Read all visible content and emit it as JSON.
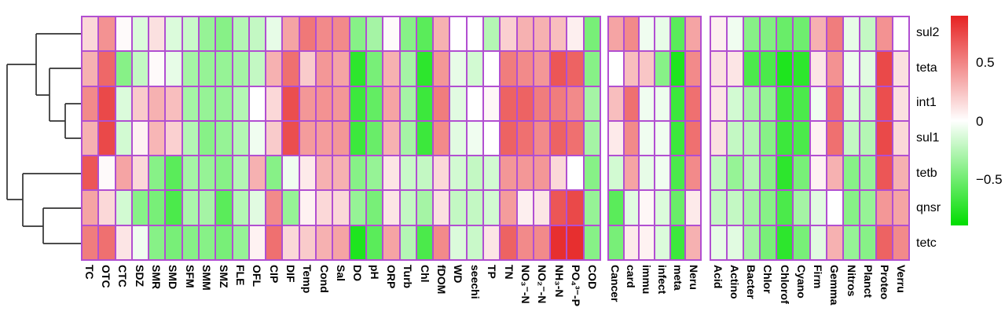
{
  "chart_data": {
    "type": "heatmap",
    "title": "",
    "legend_position": "right",
    "grid_line_color": "#b14fd1",
    "dendrogram_color": "#333333",
    "rows": [
      "sul2",
      "teta",
      "int1",
      "sul1",
      "tetb",
      "qnsr",
      "tetc"
    ],
    "column_blocks": [
      {
        "name": "antibiotics-and-environment",
        "columns": [
          "TC",
          "OTC",
          "CTC",
          "SDZ",
          "SMR",
          "SMD",
          "SFM",
          "SMM",
          "SMZ",
          "FLE",
          "OFL",
          "CIP",
          "DIF",
          "Temp",
          "Cond",
          "Sal",
          "DO",
          "pH",
          "ORP",
          "Turb",
          "Chl",
          "fDOM",
          "WD",
          "seechi",
          "TP",
          "TN",
          "NO₃⁻-N",
          "NO₂⁻-N",
          "NH₃-N",
          "PO₄³⁻-P",
          "COD"
        ]
      },
      {
        "name": "health-categories",
        "columns": [
          "Cancer",
          "card",
          "immu",
          "infect",
          "meta",
          "Neru"
        ]
      },
      {
        "name": "bacterial-phyla",
        "columns": [
          "Acid",
          "Actino",
          "Bacter",
          "Chlor",
          "Chlorof",
          "Cyano",
          "Firm",
          "Gemma",
          "Nitros",
          "Planct",
          "Proteo",
          "Verru"
        ]
      }
    ],
    "values": {
      "sul2": [
        [
          0.15,
          0.42,
          0.02,
          -0.12,
          0.12,
          -0.12,
          -0.18,
          -0.35,
          -0.4,
          -0.25,
          -0.2,
          -0.08,
          0.35,
          0.52,
          0.45,
          0.45,
          -0.4,
          -0.3,
          0.02,
          -0.4,
          -0.55,
          0.3,
          0.0,
          0.0,
          -0.25,
          0.18,
          0.3,
          0.3,
          0.25,
          0.06,
          -0.45
        ],
        [
          0.35,
          0.45,
          -0.05,
          -0.08,
          -0.55,
          0.35
        ],
        [
          0.06,
          -0.05,
          -0.4,
          -0.42,
          -0.5,
          -0.48,
          0.3,
          0.5,
          -0.08,
          -0.2,
          0.42,
          0.0
        ]
      ],
      "teta": [
        [
          0.3,
          0.58,
          -0.4,
          -0.2,
          0.02,
          -0.08,
          -0.3,
          -0.35,
          -0.35,
          -0.3,
          -0.2,
          0.3,
          0.55,
          0.2,
          0.4,
          0.35,
          -0.7,
          -0.45,
          0.3,
          -0.3,
          -0.7,
          0.4,
          -0.08,
          -0.15,
          0.0,
          0.5,
          0.45,
          0.4,
          0.65,
          0.6,
          -0.4
        ],
        [
          0.0,
          0.25,
          0.22,
          -0.4,
          -0.75,
          0.45
        ],
        [
          0.12,
          0.1,
          -0.6,
          -0.6,
          -0.75,
          -0.7,
          0.1,
          0.42,
          -0.06,
          -0.1,
          0.7,
          0.12
        ]
      ],
      "int1": [
        [
          0.45,
          0.7,
          -0.12,
          0.2,
          0.3,
          0.25,
          -0.3,
          -0.35,
          -0.35,
          -0.25,
          0.0,
          0.15,
          0.68,
          0.4,
          0.42,
          0.4,
          -0.65,
          -0.52,
          0.35,
          -0.3,
          -0.65,
          0.5,
          -0.1,
          0.0,
          0.03,
          0.6,
          0.6,
          0.5,
          0.5,
          0.45,
          -0.3
        ],
        [
          0.25,
          0.55,
          -0.05,
          -0.06,
          -0.65,
          0.55
        ],
        [
          0.1,
          -0.15,
          -0.3,
          -0.35,
          -0.65,
          -0.6,
          -0.05,
          0.55,
          -0.12,
          -0.2,
          0.68,
          0.12
        ]
      ],
      "sul1": [
        [
          0.3,
          0.7,
          -0.15,
          0.05,
          0.28,
          0.18,
          -0.25,
          -0.4,
          -0.35,
          -0.25,
          -0.05,
          0.2,
          0.68,
          0.38,
          0.38,
          0.4,
          -0.65,
          -0.5,
          0.3,
          -0.3,
          -0.65,
          0.45,
          -0.1,
          -0.05,
          0.0,
          0.6,
          0.55,
          0.45,
          0.6,
          0.55,
          -0.3
        ],
        [
          0.08,
          0.45,
          -0.05,
          -0.05,
          -0.65,
          0.55
        ],
        [
          0.12,
          -0.2,
          -0.25,
          -0.4,
          -0.65,
          -0.6,
          0.05,
          0.55,
          -0.2,
          -0.25,
          0.7,
          0.15
        ]
      ],
      "tetb": [
        [
          0.65,
          0.02,
          0.35,
          0.15,
          -0.4,
          -0.55,
          -0.3,
          -0.35,
          -0.4,
          -0.25,
          0.3,
          -0.4,
          -0.05,
          0.08,
          0.3,
          0.3,
          -0.4,
          -0.35,
          0.1,
          -0.18,
          -0.2,
          0.15,
          -0.15,
          -0.2,
          -0.15,
          0.4,
          0.4,
          0.4,
          0.15,
          0.0,
          -0.4
        ],
        [
          -0.15,
          0.35,
          -0.08,
          -0.05,
          -0.6,
          0.45
        ],
        [
          -0.2,
          -0.35,
          -0.25,
          -0.4,
          -0.7,
          -0.45,
          0.05,
          0.3,
          -0.4,
          -0.35,
          0.65,
          0.3
        ]
      ],
      "qnsr": [
        [
          0.35,
          0.15,
          -0.15,
          -0.4,
          -0.45,
          -0.6,
          -0.28,
          -0.3,
          -0.55,
          -0.25,
          -0.1,
          0.45,
          -0.35,
          0.05,
          0.15,
          0.15,
          -0.35,
          -0.45,
          0.1,
          -0.2,
          -0.3,
          0.12,
          -0.2,
          -0.2,
          -0.15,
          0.38,
          0.06,
          0.1,
          0.65,
          0.7,
          -0.35
        ],
        [
          -0.55,
          -0.1,
          0.03,
          -0.12,
          -0.5,
          0.08
        ],
        [
          -0.2,
          -0.2,
          -0.3,
          -0.4,
          -0.6,
          -0.3,
          -0.1,
          0.0,
          -0.4,
          -0.35,
          0.4,
          0.35
        ]
      ],
      "tetc": [
        [
          0.5,
          0.55,
          0.1,
          -0.05,
          -0.4,
          -0.45,
          -0.4,
          -0.4,
          -0.45,
          -0.35,
          0.05,
          0.55,
          0.15,
          0.2,
          0.3,
          0.35,
          -0.75,
          -0.55,
          0.35,
          -0.25,
          -0.6,
          0.45,
          -0.12,
          -0.18,
          0.1,
          0.6,
          0.45,
          0.45,
          0.8,
          0.8,
          -0.4
        ],
        [
          -0.45,
          0.08,
          0.05,
          -0.12,
          -0.65,
          0.3
        ],
        [
          -0.08,
          -0.1,
          -0.3,
          -0.45,
          -0.7,
          -0.45,
          -0.1,
          0.3,
          -0.35,
          -0.4,
          0.6,
          0.45
        ]
      ]
    },
    "colorbar": {
      "ticks": [
        {
          "value": 0.5,
          "label": "0.5"
        },
        {
          "value": 0.0,
          "label": "0"
        },
        {
          "value": -0.5,
          "label": "−0.5"
        }
      ],
      "max_abs": 0.9,
      "positive_color": "#e62222",
      "zero_color": "#ffffff",
      "negative_color": "#00dd00"
    },
    "dendrogram": {
      "leaf_order": [
        "sul2",
        "teta",
        "int1",
        "sul1",
        "tetb",
        "qnsr",
        "tetc"
      ],
      "structure": "((sul2,(teta,(int1,sul1))),(tetb,(qnsr,tetc)))",
      "segments": [
        [
          46,
          43,
          103,
          43
        ],
        [
          63,
          87,
          103,
          87
        ],
        [
          83,
          132,
          103,
          132
        ],
        [
          83,
          176,
          103,
          176
        ],
        [
          83,
          132,
          83,
          176
        ],
        [
          63,
          154,
          83,
          154
        ],
        [
          63,
          87,
          63,
          154
        ],
        [
          46,
          121,
          63,
          121
        ],
        [
          46,
          43,
          46,
          121
        ],
        [
          9,
          82,
          46,
          82
        ],
        [
          29,
          221,
          103,
          221
        ],
        [
          55,
          265,
          103,
          265
        ],
        [
          55,
          310,
          103,
          310
        ],
        [
          55,
          265,
          55,
          310
        ],
        [
          29,
          288,
          55,
          288
        ],
        [
          29,
          221,
          29,
          288
        ],
        [
          9,
          254,
          29,
          254
        ],
        [
          9,
          82,
          9,
          254
        ]
      ]
    }
  }
}
